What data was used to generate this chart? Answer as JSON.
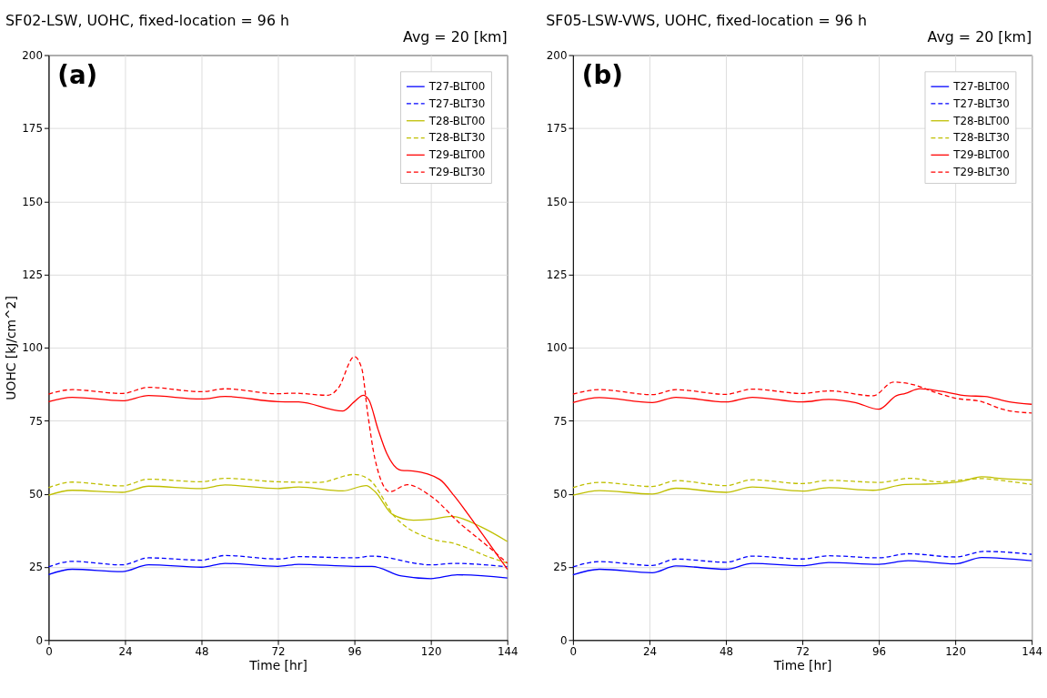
{
  "chart_data": [
    {
      "type": "line",
      "title": "SF02-LSW, UOHC, fixed-location = 96 h",
      "xlabel": "Time [hr]",
      "ylabel": "UOHC [kJ/cm^2]",
      "annotations": [
        "(a)",
        "Avg = 20 [km]"
      ],
      "xlim": [
        0,
        144
      ],
      "xticks": [
        0,
        24,
        48,
        72,
        96,
        120,
        144
      ],
      "ylim": [
        0,
        200
      ],
      "yticks": [
        0,
        25,
        50,
        75,
        100,
        125,
        150,
        175,
        200
      ],
      "grid": true,
      "legend": "top right",
      "series": [
        {
          "name": "T27-BLT00",
          "color": "#0000ff",
          "line_style": "solid",
          "x": [
            0,
            7.4,
            23.1,
            31.4,
            48,
            55.4,
            72,
            78.5,
            96,
            101.5,
            110.8,
            120,
            128.3,
            144
          ],
          "values": [
            22.4,
            24.2,
            23.4,
            25.7,
            24.9,
            26.2,
            25.2,
            25.9,
            25.2,
            25.2,
            21.9,
            21.0,
            22.3,
            21.2
          ]
        },
        {
          "name": "T27-BLT30",
          "color": "#0000ff",
          "line_style": "dashed",
          "x": [
            0,
            7.4,
            23.1,
            31.4,
            48,
            55.4,
            72,
            78.5,
            96,
            101.5,
            120,
            127.4,
            144
          ],
          "values": [
            25.0,
            26.9,
            25.7,
            28.1,
            27.3,
            28.9,
            27.7,
            28.5,
            28.1,
            28.7,
            25.7,
            26.2,
            25.0
          ]
        },
        {
          "name": "T28-BLT00",
          "color": "#bfbf00",
          "line_style": "solid",
          "x": [
            0,
            7.4,
            23.1,
            31.4,
            48,
            55.4,
            72,
            78.5,
            92.3,
            99.7,
            102.5,
            108,
            114.5,
            120,
            126.5,
            135.7,
            144
          ],
          "values": [
            49.5,
            51.2,
            50.5,
            52.6,
            51.8,
            53.0,
            51.8,
            52.3,
            51.0,
            52.8,
            50.7,
            42.9,
            41.0,
            41.3,
            42.3,
            38.7,
            33.7
          ]
        },
        {
          "name": "T28-BLT30",
          "color": "#bfbf00",
          "line_style": "dashed",
          "x": [
            0,
            7.4,
            23.1,
            31.4,
            48,
            55.4,
            72,
            84.9,
            96,
            100.6,
            108.9,
            120,
            127.4,
            138.5,
            144
          ],
          "values": [
            52.1,
            54.0,
            52.7,
            55.0,
            54.1,
            55.3,
            54.1,
            53.9,
            56.6,
            54.9,
            41.9,
            34.6,
            33.0,
            28.3,
            26.3
          ]
        },
        {
          "name": "T29-BLT00",
          "color": "#ff0000",
          "line_style": "solid",
          "x": [
            0,
            7.4,
            23.1,
            31.4,
            48,
            55.4,
            72,
            78.5,
            92.3,
            96,
            98.8,
            100.6,
            103.4,
            106.2,
            110.8,
            114.5,
            122.8,
            127.4,
            133.8,
            144
          ],
          "values": [
            81.5,
            83.0,
            81.8,
            83.6,
            82.4,
            83.3,
            81.5,
            81.4,
            78.3,
            81.5,
            83.7,
            82.0,
            72.1,
            63.7,
            58.0,
            57.8,
            54.9,
            49.2,
            39.8,
            24.2
          ]
        },
        {
          "name": "T29-BLT30",
          "color": "#ff0000",
          "line_style": "dashed",
          "x": [
            0,
            7.4,
            23.1,
            31.4,
            48,
            55.4,
            72,
            76.6,
            87.7,
            90.9,
            96,
            98.3,
            100.2,
            102.5,
            107.1,
            112.6,
            120,
            129.2,
            138.5,
            144
          ],
          "values": [
            84.1,
            85.6,
            84.3,
            86.4,
            84.9,
            85.9,
            84.2,
            84.4,
            83.7,
            86.1,
            96.9,
            92.9,
            77.3,
            61.7,
            50.7,
            53.1,
            49.2,
            39.8,
            31.5,
            26.3
          ]
        }
      ]
    },
    {
      "type": "line",
      "title": "SF05-LSW-VWS, UOHC, fixed-location = 96 h",
      "xlabel": "Time [hr]",
      "annotations": [
        "(b)",
        "Avg = 20 [km]"
      ],
      "xlim": [
        0,
        144
      ],
      "xticks": [
        0,
        24,
        48,
        72,
        96,
        120,
        144
      ],
      "ylim": [
        0,
        200
      ],
      "yticks": [
        0,
        25,
        50,
        75,
        100,
        125,
        150,
        175,
        200
      ],
      "grid": true,
      "legend": "top right",
      "series": [
        {
          "name": "T27-BLT00",
          "color": "#0000ff",
          "line_style": "solid",
          "x": [
            0,
            8.3,
            24.9,
            32.3,
            48,
            56.3,
            72,
            80.3,
            96,
            105.2,
            120,
            128.3,
            144
          ],
          "values": [
            22.3,
            24.2,
            23.0,
            25.3,
            24.2,
            26.2,
            25.4,
            26.5,
            25.9,
            27.1,
            26.0,
            28.2,
            27.1
          ]
        },
        {
          "name": "T27-BLT30",
          "color": "#0000ff",
          "line_style": "dashed",
          "x": [
            0,
            8.3,
            24.9,
            32.3,
            48,
            56.3,
            72,
            80.3,
            96,
            105.2,
            120,
            129.2,
            144
          ],
          "values": [
            25.0,
            26.8,
            25.5,
            27.7,
            26.6,
            28.7,
            27.7,
            28.8,
            28.1,
            29.5,
            28.4,
            30.3,
            29.3
          ]
        },
        {
          "name": "T28-BLT00",
          "color": "#bfbf00",
          "line_style": "solid",
          "x": [
            0,
            8.3,
            24.9,
            32.3,
            48,
            56.3,
            72,
            80.3,
            94.2,
            104.3,
            110.8,
            121.8,
            128.3,
            134.8,
            144
          ],
          "values": [
            49.5,
            51.1,
            49.9,
            51.9,
            50.5,
            52.3,
            50.9,
            52.1,
            51.2,
            53.2,
            53.3,
            54.2,
            55.8,
            55.2,
            54.7
          ]
        },
        {
          "name": "T28-BLT30",
          "color": "#bfbf00",
          "line_style": "dashed",
          "x": [
            0,
            8.3,
            24.9,
            32.3,
            48,
            56.3,
            72,
            80.3,
            96,
            106.2,
            114.5,
            128.3,
            135.7,
            144
          ],
          "values": [
            52.1,
            53.9,
            52.5,
            54.5,
            52.8,
            54.8,
            53.5,
            54.6,
            53.9,
            55.3,
            54.1,
            55.2,
            54.4,
            53.2
          ]
        },
        {
          "name": "T29-BLT00",
          "color": "#ff0000",
          "line_style": "solid",
          "x": [
            0,
            8.3,
            24.9,
            32.3,
            48,
            56.3,
            72,
            80.3,
            88.6,
            96,
            101.5,
            104.3,
            108.9,
            115.4,
            123.7,
            129.2,
            136.6,
            144
          ],
          "values": [
            81.2,
            82.9,
            81.2,
            83.0,
            81.4,
            83.0,
            81.4,
            82.3,
            81.2,
            78.9,
            83.5,
            84.3,
            85.9,
            85.1,
            83.5,
            83.3,
            81.5,
            80.6
          ]
        },
        {
          "name": "T29-BLT30",
          "color": "#ff0000",
          "line_style": "dashed",
          "x": [
            0,
            8.3,
            24.9,
            32.3,
            48,
            56.3,
            72,
            80.3,
            94.2,
            100.6,
            105.2,
            115.4,
            120,
            128.3,
            134.8,
            144
          ],
          "values": [
            84.1,
            85.6,
            83.9,
            85.6,
            84.0,
            85.8,
            84.3,
            85.2,
            83.5,
            88.2,
            87.7,
            84.1,
            82.7,
            81.5,
            78.9,
            77.6
          ]
        }
      ]
    }
  ]
}
